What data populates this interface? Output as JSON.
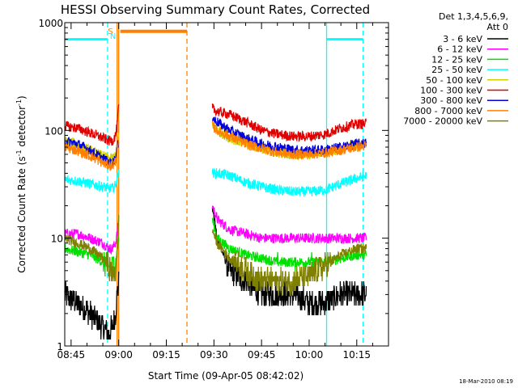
{
  "chart_data": {
    "type": "line",
    "title": "HESSI Observing Summary Count Rates, Corrected",
    "xlabel": "Start Time (09-Apr-05 08:42:02)",
    "ylabel_main": "Corrected Count Rate (s",
    "ylabel_sup1": "-1",
    "ylabel_mid": " detector",
    "ylabel_sup2": "-1",
    "ylabel_end": ")",
    "yscale": "log",
    "ylim": [
      1,
      1000
    ],
    "xlim_minutes": [
      -2.0,
      100.0
    ],
    "x_ticks": [
      {
        "label": "08:45",
        "minute": 0
      },
      {
        "label": "09:00",
        "minute": 15
      },
      {
        "label": "09:15",
        "minute": 30
      },
      {
        "label": "09:30",
        "minute": 45
      },
      {
        "label": "09:45",
        "minute": 60
      },
      {
        "label": "10:00",
        "minute": 75
      },
      {
        "label": "10:15",
        "minute": 90
      }
    ],
    "y_ticks": [
      {
        "label": "1",
        "value": 1
      },
      {
        "label": "10",
        "value": 10
      },
      {
        "label": "100",
        "value": 100
      },
      {
        "label": "1000",
        "value": 1000
      }
    ],
    "legend": {
      "header1": "Det 1,3,4,5,6,9,",
      "header2": "Att 0",
      "placement": "right"
    },
    "series": [
      {
        "name": "3 - 6 keV",
        "color": "#000000"
      },
      {
        "name": "6 - 12 keV",
        "color": "#ff00ff"
      },
      {
        "name": "12 - 25 keV",
        "color": "#00e000"
      },
      {
        "name": "25 - 50 keV",
        "color": "#00ffff"
      },
      {
        "name": "50 - 100 keV",
        "color": "#d0d000"
      },
      {
        "name": "100 - 300 keV",
        "color": "#e00000"
      },
      {
        "name": "300 - 800 keV",
        "color": "#0000e0"
      },
      {
        "name": "800 - 7000 keV",
        "color": "#ff8000"
      },
      {
        "name": "7000 - 20000 keV",
        "color": "#808000"
      }
    ],
    "segments": [
      {
        "x": [
          -2,
          2,
          6,
          10,
          12,
          13,
          14,
          14.5,
          15
        ],
        "values": {
          "3 - 6 keV": [
            3,
            2.5,
            2,
            1.5,
            1.3,
            1.5,
            2,
            3,
            4
          ],
          "6 - 12 keV": [
            11,
            11,
            10,
            9,
            8,
            8,
            9,
            11,
            15
          ],
          "12 - 25 keV": [
            8,
            7.5,
            7,
            6,
            5.5,
            5.5,
            6,
            7.5,
            10
          ],
          "25 - 50 keV": [
            35,
            34,
            32,
            30,
            29,
            29,
            31,
            35,
            45
          ],
          "50 - 100 keV": [
            80,
            75,
            65,
            58,
            55,
            55,
            60,
            70,
            90
          ],
          "100 - 300 keV": [
            110,
            105,
            95,
            85,
            80,
            80,
            90,
            110,
            170
          ],
          "300 - 800 keV": [
            80,
            75,
            65,
            55,
            50,
            50,
            55,
            65,
            85
          ],
          "800 - 7000 keV": [
            70,
            65,
            58,
            50,
            47,
            47,
            52,
            60,
            80
          ],
          "7000 - 20000 keV": [
            10,
            9,
            8,
            6.5,
            5.5,
            4.5,
            5,
            7,
            15
          ]
        }
      },
      {
        "x": [
          44.5,
          46,
          50,
          55,
          60,
          65,
          70,
          75,
          80,
          85,
          90,
          93
        ],
        "values": {
          "3 - 6 keV": [
            20,
            10,
            5,
            4,
            3,
            3,
            3,
            2.5,
            2.5,
            3,
            3,
            3
          ],
          "6 - 12 keV": [
            20,
            15,
            12,
            11,
            10,
            10,
            10,
            10,
            10,
            10,
            10,
            10
          ],
          "12 - 25 keV": [
            15,
            10,
            8,
            7,
            6.5,
            6,
            6,
            6,
            6,
            6.5,
            7,
            7
          ],
          "25 - 50 keV": [
            40,
            40,
            38,
            33,
            30,
            28,
            27,
            27,
            28,
            32,
            36,
            38
          ],
          "50 - 100 keV": [
            110,
            100,
            85,
            75,
            68,
            62,
            60,
            60,
            62,
            68,
            73,
            75
          ],
          "100 - 300 keV": [
            160,
            150,
            140,
            120,
            100,
            92,
            88,
            88,
            92,
            105,
            115,
            115
          ],
          "300 - 800 keV": [
            130,
            120,
            100,
            85,
            75,
            70,
            66,
            65,
            66,
            70,
            75,
            76
          ],
          "800 - 7000 keV": [
            110,
            100,
            88,
            75,
            68,
            62,
            60,
            60,
            62,
            66,
            70,
            72
          ],
          "7000 - 20000 keV": [
            12,
            9,
            6.5,
            5,
            4,
            4,
            4,
            4.5,
            5.5,
            7,
            8,
            8
          ]
        }
      }
    ],
    "state_bars": {
      "attenuator_cyan": [
        {
          "x0": -2,
          "x1": 11.5,
          "value": 700
        },
        {
          "x0": 80.5,
          "x1": 92,
          "value": 700
        }
      ],
      "orange_top": [
        {
          "x0": 15.5,
          "x1": 36.5,
          "value": 830
        }
      ],
      "orange_marks": [
        {
          "x": 14.5,
          "style": "solid"
        },
        {
          "x": 15.0,
          "style": "solid"
        },
        {
          "x": 36.5,
          "style": "dashed"
        }
      ],
      "cyan_marks": [
        {
          "x": 11.5,
          "style": "dashed"
        },
        {
          "x": 80.5,
          "style": "solid"
        },
        {
          "x": 92,
          "style": "dashed"
        }
      ],
      "top_letters": [
        {
          "x": 12.4,
          "text": "S",
          "color": "#ff8000",
          "row": 1
        },
        {
          "x": 13.2,
          "text": "N",
          "color": "#00ffff",
          "row": 2
        }
      ]
    },
    "colors": {
      "background": "#ffffff",
      "axes": "#000000",
      "cyan": "#00ffff",
      "orange": "#ff8000"
    }
  },
  "footer_timestamp": "18-Mar-2010 08:19"
}
